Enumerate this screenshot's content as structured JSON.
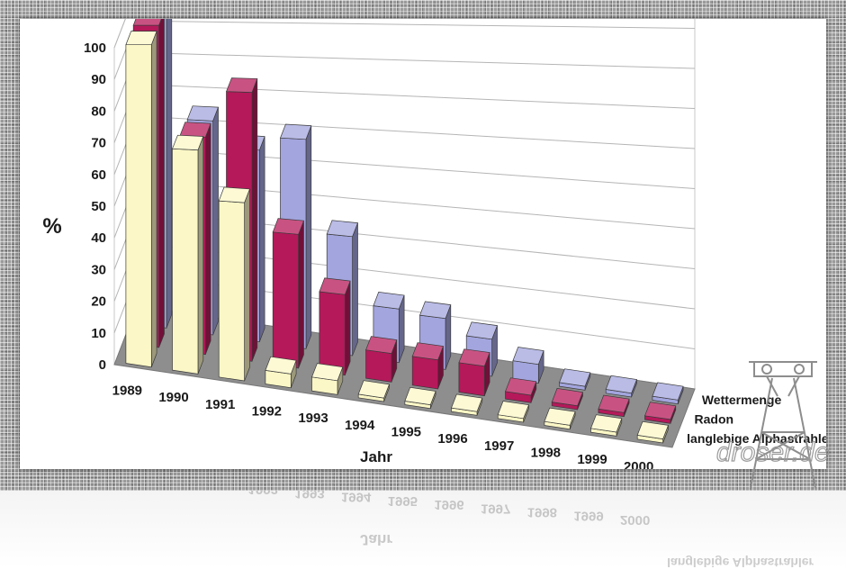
{
  "chart_data": {
    "type": "bar",
    "subtype": "3d-clustered-columns",
    "ylabel": "%",
    "xlabel": "Jahr",
    "ylim": [
      0,
      100
    ],
    "yticks": [
      0,
      10,
      20,
      30,
      40,
      50,
      60,
      70,
      80,
      90,
      100
    ],
    "categories": [
      "1989",
      "1990",
      "1991",
      "1992",
      "1993",
      "1994",
      "1995",
      "1996",
      "1997",
      "1998",
      "1999",
      "2000"
    ],
    "series": [
      {
        "name": "langlebige Alphastrahler",
        "color": "#fbf7c6",
        "values": [
          100,
          68,
          53,
          4,
          4,
          1,
          1,
          1,
          1,
          1,
          1,
          1
        ]
      },
      {
        "name": "Radon",
        "color": "#b5195a",
        "values": [
          100,
          66,
          80,
          39,
          23,
          8,
          8,
          8,
          2,
          1,
          1,
          1
        ]
      },
      {
        "name": "Wettermenge",
        "color": "#a3a5de",
        "values": [
          100,
          65,
          57,
          61,
          34,
          15,
          14,
          10,
          5,
          1,
          1,
          1
        ]
      }
    ],
    "grid": true,
    "legend": "series labels on the depth axis, right"
  },
  "watermark": {
    "text": "droser.de"
  }
}
